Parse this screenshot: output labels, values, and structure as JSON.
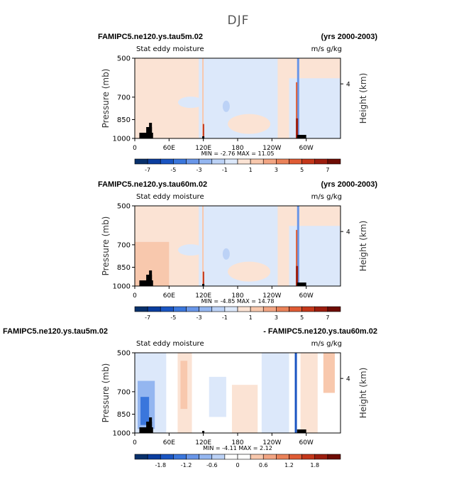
{
  "figure": {
    "title": "DJF"
  },
  "colorbar_colors_diverging": [
    "#08306b",
    "#0a3d9e",
    "#1a55c2",
    "#3a76dc",
    "#6996e8",
    "#94b6f0",
    "#bcd2f6",
    "#dce8fa",
    "#fbe3d4",
    "#f8c8ad",
    "#f2a583",
    "#ea8259",
    "#df5b34",
    "#c4371a",
    "#9c1d0e",
    "#6e0c04"
  ],
  "chart_data": [
    {
      "type": "heatmap",
      "panel": "top",
      "title_left": "FAMIPC5.ne120.ys.tau5m.02",
      "title_right": "(yrs 2000-2003)",
      "subtitle_left": "Stat eddy moisture",
      "subtitle_right": "m/s g/kg",
      "ylabel": "Pressure (mb)",
      "right_label": "Height (km)",
      "yticks": [
        "500",
        "700",
        "850",
        "1000"
      ],
      "right_ticks": [
        "4"
      ],
      "xticks": [
        "0",
        "60E",
        "120E",
        "180",
        "120W",
        "60W"
      ],
      "minmax": "MIN =   -2.76   MAX =   11.05",
      "min": -2.76,
      "max": 11.05,
      "colorbar_labels": [
        "-7",
        "-5",
        "-3",
        "-1",
        "1",
        "3",
        "5",
        "7"
      ],
      "colorbar_levels": [
        -7,
        -5,
        -3,
        -1,
        1,
        3,
        5,
        7
      ]
    },
    {
      "type": "heatmap",
      "panel": "middle",
      "title_left": "FAMIPC5.ne120.ys.tau60m.02",
      "title_right": "(yrs 2000-2003)",
      "subtitle_left": "Stat eddy moisture",
      "subtitle_right": "m/s g/kg",
      "ylabel": "Pressure (mb)",
      "right_label": "Height (km)",
      "yticks": [
        "500",
        "700",
        "850",
        "1000"
      ],
      "right_ticks": [
        "4"
      ],
      "xticks": [
        "0",
        "60E",
        "120E",
        "180",
        "120W",
        "60W"
      ],
      "minmax": "MIN =   -4.85   MAX =   14.78",
      "min": -4.85,
      "max": 14.78,
      "colorbar_labels": [
        "-7",
        "-5",
        "-3",
        "-1",
        "1",
        "3",
        "5",
        "7"
      ],
      "colorbar_levels": [
        -7,
        -5,
        -3,
        -1,
        1,
        3,
        5,
        7
      ]
    },
    {
      "type": "heatmap",
      "panel": "bottom",
      "title_left": "FAMIPC5.ne120.ys.tau5m.02",
      "title_right": "- FAMIPC5.ne120.ys.tau60m.02",
      "subtitle_left": "Stat eddy moisture",
      "subtitle_right": "m/s g/kg",
      "ylabel": "Pressure (mb)",
      "right_label": "Height (km)",
      "yticks": [
        "500",
        "700",
        "850",
        "1000"
      ],
      "right_ticks": [
        "4"
      ],
      "xticks": [
        "0",
        "60E",
        "120E",
        "180",
        "120W",
        "60W"
      ],
      "minmax": "MIN =   -4.11   MAX =   2.12",
      "min": -4.11,
      "max": 2.12,
      "colorbar_labels": [
        "-1.8",
        "-1.2",
        "-0.6",
        "0",
        "0.6",
        "1.2",
        "1.8"
      ],
      "colorbar_levels": [
        -1.8,
        -1.2,
        -0.6,
        0,
        0.6,
        1.2,
        1.8
      ]
    }
  ]
}
